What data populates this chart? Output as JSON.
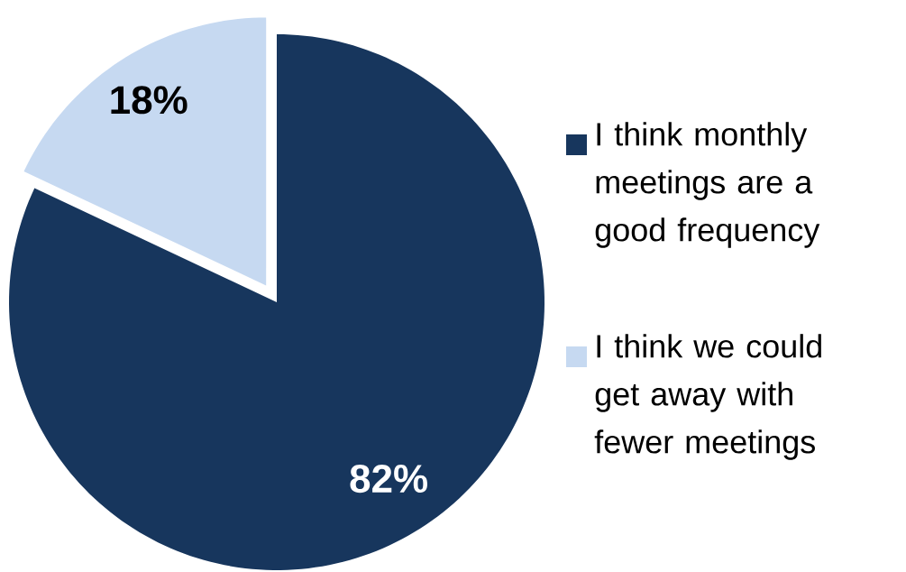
{
  "chart_data": {
    "type": "pie",
    "categories": [
      "I think monthly meetings are a good frequency",
      "I think we could get away with fewer meetings"
    ],
    "values": [
      82,
      18
    ],
    "colors": [
      "#17365d",
      "#c6d9f1"
    ],
    "value_labels": [
      "82%",
      "18%"
    ],
    "legend": "right"
  }
}
